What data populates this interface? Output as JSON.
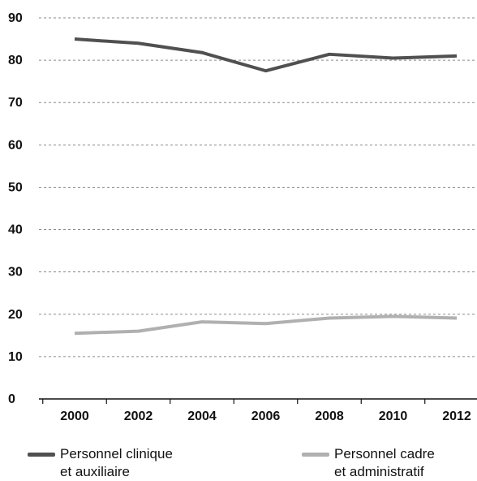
{
  "chart_data": {
    "type": "line",
    "x": [
      2000,
      2002,
      2004,
      2006,
      2008,
      2010,
      2012
    ],
    "categories": [
      "2000",
      "2002",
      "2004",
      "2006",
      "2008",
      "2010",
      "2012"
    ],
    "yticks": [
      "0",
      "10",
      "20",
      "30",
      "40",
      "50",
      "60",
      "70",
      "80",
      "90"
    ],
    "ylim": [
      0,
      90
    ],
    "grid": true,
    "legend_position": "bottom",
    "series": [
      {
        "name": "Personnel clinique et auxiliaire",
        "legend_lines": [
          "Personnel clinique",
          "et auxiliaire"
        ],
        "color": "#505050",
        "values": [
          85.0,
          84.0,
          81.8,
          77.5,
          81.4,
          80.5,
          81.0
        ]
      },
      {
        "name": "Personnel cadre et administratif",
        "legend_lines": [
          "Personnel cadre",
          "et administratif"
        ],
        "color": "#b0b0b0",
        "values": [
          15.5,
          16.0,
          18.2,
          17.8,
          19.1,
          19.5,
          19.1
        ]
      }
    ]
  }
}
